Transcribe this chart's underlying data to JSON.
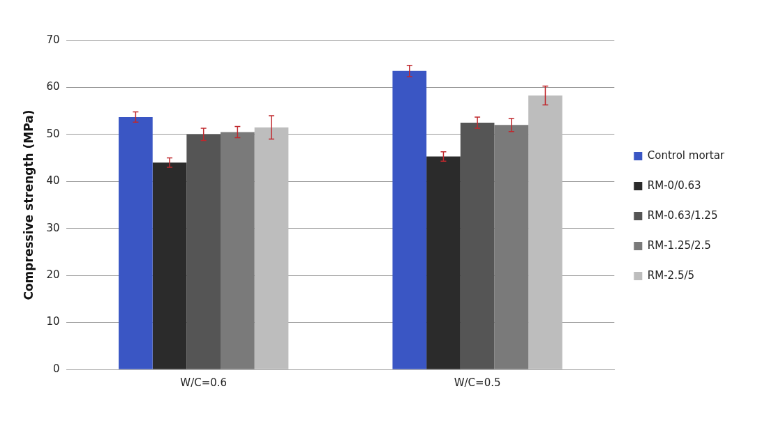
{
  "chart_data": {
    "type": "bar",
    "ylabel": "Compressive strength (MPa)",
    "categories": [
      "W/C=0.6",
      "W/C=0.5"
    ],
    "series": [
      {
        "name": "Control mortar",
        "color": "#3a56c4",
        "values": [
          53.7,
          63.5
        ],
        "errors": [
          1.1,
          1.2
        ]
      },
      {
        "name": "RM-0/0.63",
        "color": "#2b2b2b",
        "values": [
          44,
          45.3
        ],
        "errors": [
          1,
          1
        ]
      },
      {
        "name": "RM-0.63/1.25",
        "color": "#555555",
        "values": [
          50,
          52.5
        ],
        "errors": [
          1.3,
          1.2
        ]
      },
      {
        "name": "RM-1.25/2.5",
        "color": "#7a7a7a",
        "values": [
          50.5,
          52
        ],
        "errors": [
          1.2,
          1.4
        ]
      },
      {
        "name": "RM-2.5/5",
        "color": "#bdbdbd",
        "values": [
          51.5,
          58.3
        ],
        "errors": [
          2.5,
          2
        ]
      }
    ],
    "ylim": [
      0,
      70
    ],
    "yticks": [
      0,
      10,
      20,
      30,
      40,
      50,
      60,
      70
    ],
    "grid": "y",
    "legend": "right"
  }
}
